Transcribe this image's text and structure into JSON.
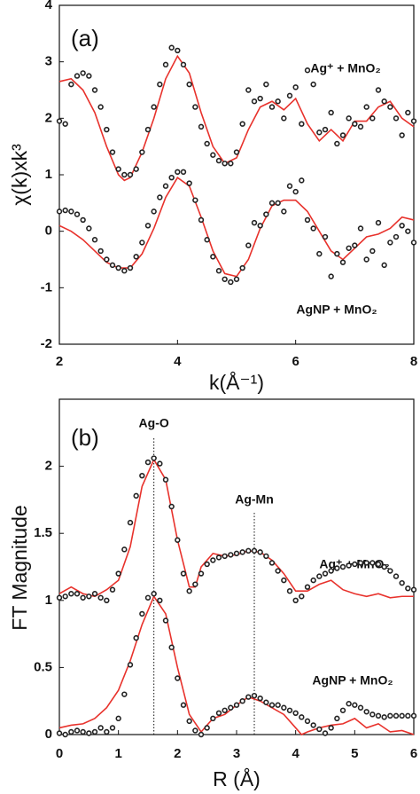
{
  "chart_data": [
    {
      "type": "line",
      "title": "(a)",
      "xlabel": "k(Å⁻¹)",
      "ylabel": "χ(k)xk³",
      "xlim": [
        2,
        8
      ],
      "ylim": [
        -2,
        4
      ],
      "xticks": [
        2,
        4,
        6,
        8
      ],
      "yticks": [
        -2,
        -1,
        0,
        1,
        2,
        3,
        4
      ],
      "annotations": [
        "Ag⁺ + MnO₂",
        "AgNP + MnO₂"
      ],
      "series": [
        {
          "style": "markers",
          "color": "#222222",
          "x": [
            2.0,
            2.1,
            2.2,
            2.3,
            2.4,
            2.5,
            2.6,
            2.7,
            2.8,
            2.9,
            3.0,
            3.1,
            3.2,
            3.3,
            3.4,
            3.5,
            3.6,
            3.7,
            3.8,
            3.9,
            4.0,
            4.1,
            4.2,
            4.3,
            4.4,
            4.5,
            4.6,
            4.7,
            4.8,
            4.9,
            5.0,
            5.1,
            5.2,
            5.3,
            5.4,
            5.5,
            5.6,
            5.7,
            5.8,
            5.9,
            6.0,
            6.1,
            6.2,
            6.3,
            6.4,
            6.5,
            6.6,
            6.7,
            6.8,
            6.9,
            7.0,
            7.1,
            7.2,
            7.3,
            7.4,
            7.5,
            7.6,
            7.7,
            7.8,
            7.9,
            8.0
          ],
          "values": [
            1.95,
            1.9,
            2.6,
            2.75,
            2.8,
            2.75,
            2.5,
            2.2,
            1.8,
            1.4,
            1.1,
            1.0,
            1.0,
            1.1,
            1.4,
            1.8,
            2.2,
            2.6,
            2.95,
            3.25,
            3.2,
            2.95,
            2.6,
            2.2,
            1.85,
            1.55,
            1.35,
            1.25,
            1.2,
            1.2,
            1.4,
            1.9,
            2.5,
            2.3,
            2.35,
            2.6,
            2.2,
            2.3,
            2.0,
            2.4,
            2.55,
            1.9,
            2.85,
            2.6,
            1.75,
            1.8,
            2.1,
            1.55,
            1.7,
            2.0,
            1.9,
            1.85,
            2.2,
            2.0,
            2.5,
            2.3,
            2.2,
            2.0,
            1.7,
            2.1,
            1.95
          ]
        },
        {
          "style": "line",
          "color": "#e8322c",
          "x": [
            2.0,
            2.2,
            2.4,
            2.6,
            2.8,
            3.0,
            3.1,
            3.2,
            3.4,
            3.6,
            3.8,
            4.0,
            4.2,
            4.4,
            4.6,
            4.8,
            5.0,
            5.2,
            5.4,
            5.6,
            5.8,
            6.0,
            6.2,
            6.4,
            6.6,
            6.8,
            7.0,
            7.2,
            7.4,
            7.6,
            7.8,
            8.0
          ],
          "values": [
            2.65,
            2.7,
            2.5,
            2.1,
            1.5,
            1.0,
            0.9,
            0.95,
            1.4,
            2.0,
            2.7,
            3.1,
            2.8,
            2.1,
            1.5,
            1.2,
            1.3,
            1.8,
            2.2,
            2.3,
            2.15,
            2.35,
            1.9,
            1.6,
            1.8,
            1.6,
            1.95,
            1.95,
            2.2,
            2.3,
            2.0,
            1.85
          ]
        },
        {
          "style": "markers",
          "color": "#222222",
          "x": [
            2.0,
            2.1,
            2.2,
            2.3,
            2.4,
            2.5,
            2.6,
            2.7,
            2.8,
            2.9,
            3.0,
            3.1,
            3.2,
            3.3,
            3.4,
            3.5,
            3.6,
            3.7,
            3.8,
            3.9,
            4.0,
            4.1,
            4.2,
            4.3,
            4.4,
            4.5,
            4.6,
            4.7,
            4.8,
            4.9,
            5.0,
            5.1,
            5.2,
            5.3,
            5.4,
            5.5,
            5.6,
            5.7,
            5.8,
            5.9,
            6.0,
            6.1,
            6.2,
            6.3,
            6.4,
            6.5,
            6.6,
            6.7,
            6.8,
            6.9,
            7.0,
            7.1,
            7.2,
            7.3,
            7.4,
            7.5,
            7.6,
            7.7,
            7.8,
            7.9,
            8.0
          ],
          "values": [
            0.35,
            0.37,
            0.35,
            0.3,
            0.2,
            0.05,
            -0.15,
            -0.35,
            -0.5,
            -0.6,
            -0.65,
            -0.7,
            -0.65,
            -0.45,
            -0.2,
            0.1,
            0.35,
            0.6,
            0.8,
            0.95,
            1.05,
            1.05,
            0.85,
            0.55,
            0.2,
            -0.15,
            -0.45,
            -0.7,
            -0.85,
            -0.9,
            -0.85,
            -0.65,
            -0.25,
            0.15,
            0.1,
            0.3,
            0.5,
            0.5,
            0.35,
            0.8,
            0.7,
            0.9,
            0.2,
            0.05,
            -0.4,
            -0.1,
            -0.8,
            -0.4,
            -0.55,
            -0.3,
            -0.25,
            0.05,
            -0.5,
            -0.35,
            0.15,
            -0.6,
            -0.2,
            -0.1,
            0.1,
            0.0,
            -0.2
          ]
        },
        {
          "style": "line",
          "color": "#e8322c",
          "x": [
            2.0,
            2.2,
            2.4,
            2.6,
            2.8,
            3.0,
            3.2,
            3.4,
            3.6,
            3.8,
            4.0,
            4.2,
            4.4,
            4.6,
            4.8,
            5.0,
            5.2,
            5.4,
            5.6,
            5.8,
            6.0,
            6.2,
            6.4,
            6.6,
            6.8,
            7.0,
            7.2,
            7.4,
            7.6,
            7.8,
            8.0
          ],
          "values": [
            0.1,
            0.0,
            -0.15,
            -0.35,
            -0.55,
            -0.65,
            -0.65,
            -0.4,
            0.05,
            0.6,
            0.95,
            0.8,
            0.25,
            -0.35,
            -0.75,
            -0.8,
            -0.5,
            0.05,
            0.45,
            0.55,
            0.55,
            0.35,
            0.0,
            -0.35,
            -0.5,
            -0.3,
            -0.1,
            -0.05,
            0.05,
            0.25,
            0.2
          ]
        }
      ]
    },
    {
      "type": "line",
      "title": "(b)",
      "xlabel": "R (Å)",
      "ylabel": "FT Magnitude",
      "xlim": [
        0,
        6
      ],
      "ylim": [
        0,
        2.5
      ],
      "xticks": [
        0,
        1,
        2,
        3,
        4,
        5,
        6
      ],
      "yticks": [
        0,
        0.5,
        1,
        1.5,
        2
      ],
      "annotations": [
        "Ag⁺ + MnO₂",
        "AgNP + MnO₂"
      ],
      "vlines": [
        {
          "x": 1.6,
          "label": "Ag-O"
        },
        {
          "x": 3.3,
          "label": "Ag-Mn"
        }
      ],
      "series": [
        {
          "style": "markers",
          "color": "#222222",
          "x": [
            0.0,
            0.1,
            0.2,
            0.3,
            0.4,
            0.5,
            0.6,
            0.7,
            0.8,
            0.9,
            1.0,
            1.1,
            1.2,
            1.3,
            1.4,
            1.5,
            1.6,
            1.7,
            1.8,
            1.9,
            2.0,
            2.1,
            2.2,
            2.3,
            2.4,
            2.5,
            2.6,
            2.7,
            2.8,
            2.9,
            3.0,
            3.1,
            3.2,
            3.3,
            3.4,
            3.5,
            3.6,
            3.7,
            3.8,
            3.9,
            4.0,
            4.1,
            4.2,
            4.3,
            4.4,
            4.5,
            4.6,
            4.7,
            4.8,
            4.9,
            5.0,
            5.1,
            5.2,
            5.3,
            5.4,
            5.5,
            5.6,
            5.7,
            5.8,
            5.9,
            6.0
          ],
          "values": [
            1.02,
            1.03,
            1.05,
            1.05,
            1.02,
            1.03,
            1.05,
            1.02,
            1.0,
            1.08,
            1.2,
            1.38,
            1.58,
            1.78,
            1.93,
            2.03,
            2.06,
            2.02,
            1.9,
            1.7,
            1.45,
            1.2,
            1.07,
            1.12,
            1.2,
            1.27,
            1.3,
            1.32,
            1.33,
            1.34,
            1.35,
            1.36,
            1.37,
            1.37,
            1.36,
            1.33,
            1.28,
            1.22,
            1.15,
            1.07,
            1.0,
            1.03,
            1.1,
            1.15,
            1.18,
            1.2,
            1.22,
            1.24,
            1.25,
            1.26,
            1.27,
            1.28,
            1.28,
            1.28,
            1.27,
            1.25,
            1.22,
            1.18,
            1.13,
            1.09,
            1.08
          ]
        },
        {
          "style": "line",
          "color": "#e8322c",
          "x": [
            0.0,
            0.2,
            0.4,
            0.6,
            0.8,
            1.0,
            1.2,
            1.4,
            1.6,
            1.8,
            2.0,
            2.2,
            2.3,
            2.4,
            2.6,
            2.8,
            3.0,
            3.2,
            3.4,
            3.6,
            3.8,
            4.0,
            4.2,
            4.4,
            4.6,
            4.8,
            5.0,
            5.2,
            5.4,
            5.6,
            5.8,
            6.0
          ],
          "values": [
            1.05,
            1.1,
            1.05,
            1.03,
            1.08,
            1.15,
            1.4,
            1.85,
            2.05,
            1.9,
            1.45,
            1.1,
            1.1,
            1.25,
            1.35,
            1.33,
            1.34,
            1.37,
            1.36,
            1.3,
            1.2,
            1.07,
            1.07,
            1.12,
            1.15,
            1.08,
            1.05,
            1.03,
            1.05,
            1.02,
            1.03,
            1.03
          ]
        },
        {
          "style": "markers",
          "color": "#222222",
          "x": [
            0.0,
            0.1,
            0.2,
            0.3,
            0.4,
            0.5,
            0.6,
            0.7,
            0.8,
            0.9,
            1.0,
            1.1,
            1.2,
            1.3,
            1.4,
            1.5,
            1.6,
            1.7,
            1.8,
            1.9,
            2.0,
            2.1,
            2.2,
            2.3,
            2.4,
            2.5,
            2.6,
            2.7,
            2.8,
            2.9,
            3.0,
            3.1,
            3.2,
            3.3,
            3.4,
            3.5,
            3.6,
            3.7,
            3.8,
            3.9,
            4.0,
            4.1,
            4.2,
            4.3,
            4.4,
            4.5,
            4.6,
            4.7,
            4.8,
            4.9,
            5.0,
            5.1,
            5.2,
            5.3,
            5.4,
            5.5,
            5.6,
            5.7,
            5.8,
            5.9,
            6.0
          ],
          "values": [
            0.01,
            0.0,
            0.02,
            0.03,
            0.02,
            0.01,
            0.02,
            0.05,
            0.02,
            0.05,
            0.12,
            0.3,
            0.52,
            0.72,
            0.9,
            1.02,
            1.05,
            1.0,
            0.85,
            0.65,
            0.42,
            0.22,
            0.1,
            0.03,
            0.0,
            0.05,
            0.12,
            0.16,
            0.18,
            0.2,
            0.22,
            0.25,
            0.28,
            0.29,
            0.27,
            0.24,
            0.22,
            0.22,
            0.2,
            0.18,
            0.16,
            0.13,
            0.1,
            0.07,
            0.04,
            0.01,
            0.05,
            0.12,
            0.18,
            0.23,
            0.22,
            0.2,
            0.17,
            0.15,
            0.14,
            0.13,
            0.14,
            0.14,
            0.14,
            0.14,
            0.14
          ]
        },
        {
          "style": "line",
          "color": "#e8322c",
          "x": [
            0.0,
            0.2,
            0.4,
            0.6,
            0.8,
            1.0,
            1.2,
            1.4,
            1.6,
            1.8,
            2.0,
            2.2,
            2.4,
            2.6,
            2.8,
            3.0,
            3.2,
            3.4,
            3.6,
            3.8,
            4.0,
            4.1,
            4.2,
            4.4,
            4.6,
            4.8,
            5.0,
            5.2,
            5.4,
            5.6,
            5.8,
            6.0
          ],
          "values": [
            0.05,
            0.07,
            0.08,
            0.12,
            0.2,
            0.33,
            0.55,
            0.82,
            1.03,
            0.9,
            0.5,
            0.15,
            0.02,
            0.12,
            0.15,
            0.22,
            0.28,
            0.25,
            0.2,
            0.15,
            0.05,
            0.0,
            0.02,
            0.05,
            0.07,
            0.08,
            0.12,
            0.05,
            0.08,
            0.02,
            0.03,
            0.0
          ]
        }
      ]
    }
  ]
}
